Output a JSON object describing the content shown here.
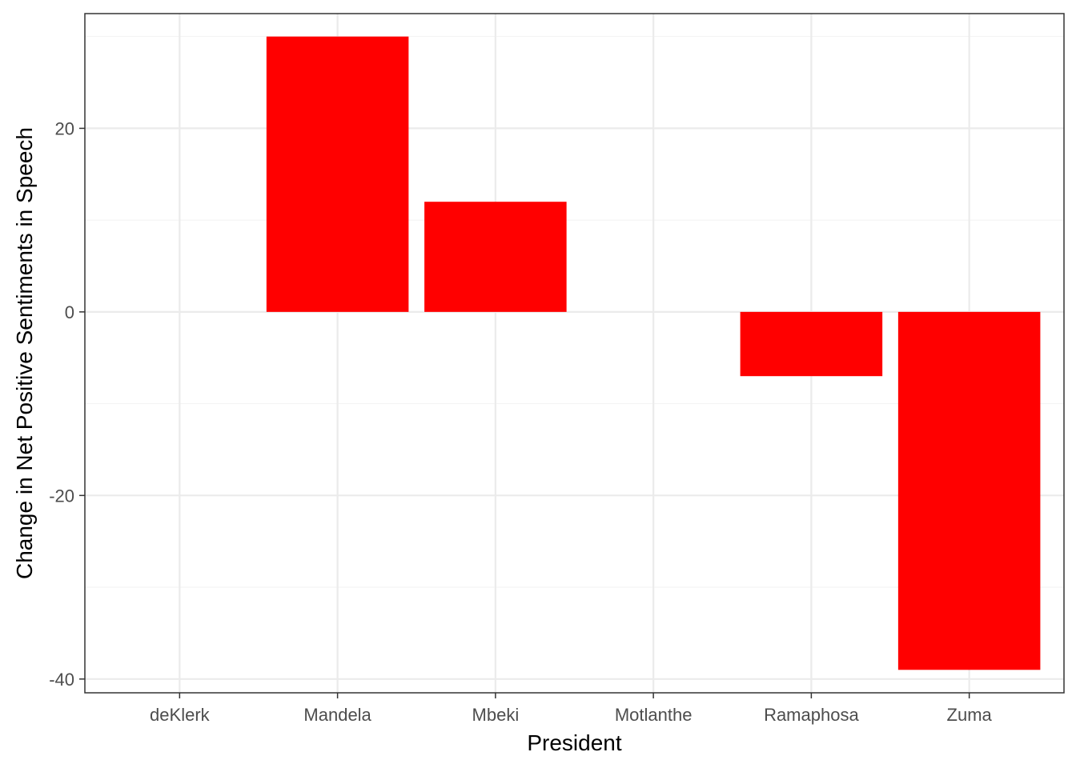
{
  "chart_data": {
    "type": "bar",
    "categories": [
      "deKlerk",
      "Mandela",
      "Mbeki",
      "Motlanthe",
      "Ramaphosa",
      "Zuma"
    ],
    "values": [
      0,
      30,
      12,
      0,
      -7,
      -39
    ],
    "title": "",
    "xlabel": "President",
    "ylabel": "Change in Net Positive Sentiments in Speech",
    "ylim": [
      -41.5,
      32.5
    ],
    "yticks": [
      -40,
      -20,
      0,
      20
    ],
    "ytick_labels": [
      "-40",
      "-20",
      "0",
      "20"
    ],
    "grid": true,
    "bar_color": "#ff0000",
    "legend": "none"
  }
}
